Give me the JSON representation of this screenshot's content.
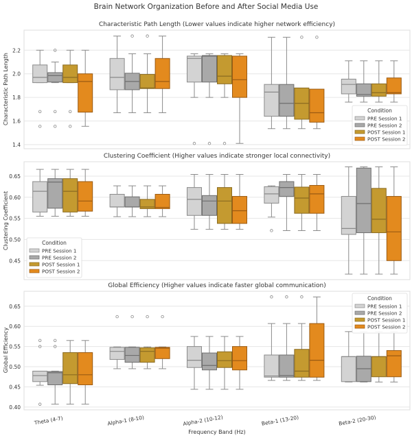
{
  "chart_data": {
    "title": "Brain Network Organization Before and After Social Media Use",
    "xlabel": "Frequency Band (Hz)",
    "categories": [
      "Theta (4-7)",
      "Alpha-1 (8-10)",
      "Alpha-2 (10-12)",
      "Beta-1 (13-20)",
      "Beta-2 (20-30)"
    ],
    "legend": {
      "title": "Condition",
      "entries": [
        {
          "name": "PRE Session 1",
          "color": "#d3d3d3"
        },
        {
          "name": "PRE Session 2",
          "color": "#a9a9a9"
        },
        {
          "name": "POST Session 1",
          "color": "#c49a30"
        },
        {
          "name": "POST Session 2",
          "color": "#e38a1e"
        }
      ]
    },
    "panels": [
      {
        "type": "box",
        "title": "Characteristic Path Length (Lower values indicate higher network efficiency)",
        "ylabel": "Characteristic Path Length",
        "ylim": [
          1.365,
          2.37
        ],
        "yticks": [
          1.4,
          1.6,
          1.8,
          2.0,
          2.2
        ],
        "ytick_labels": [
          "1.4",
          "1.6",
          "1.8",
          "2.0",
          "2.2"
        ],
        "legend_position": "lower-right",
        "grid": true,
        "boxes": [
          [
            {
              "lo": 1.925,
              "q1": 1.925,
              "med": 1.97,
              "q3": 2.075,
              "hi": 2.2,
              "out": [
                1.68,
                1.555
              ]
            },
            {
              "lo": 1.925,
              "q1": 1.93,
              "med": 1.985,
              "q3": 2.01,
              "hi": 2.1,
              "out": [
                2.2,
                1.68,
                1.555
              ]
            },
            {
              "lo": 1.925,
              "q1": 1.925,
              "med": 1.97,
              "q3": 2.075,
              "hi": 2.2,
              "out": [
                1.68,
                1.555
              ]
            },
            {
              "lo": 1.555,
              "q1": 1.675,
              "med": 1.935,
              "q3": 2.0,
              "hi": 2.2,
              "out": []
            }
          ],
          [
            {
              "lo": 1.67,
              "q1": 1.865,
              "med": 1.97,
              "q3": 2.13,
              "hi": 2.32,
              "out": []
            },
            {
              "lo": 1.67,
              "q1": 1.865,
              "med": 1.935,
              "q3": 2.005,
              "hi": 2.17,
              "out": [
                2.32
              ]
            },
            {
              "lo": 1.67,
              "q1": 1.875,
              "med": 1.88,
              "q3": 1.995,
              "hi": 2.17,
              "out": [
                2.32
              ]
            },
            {
              "lo": 1.67,
              "q1": 1.875,
              "med": 1.935,
              "q3": 2.13,
              "hi": 2.32,
              "out": []
            }
          ],
          [
            {
              "lo": 1.8,
              "q1": 1.93,
              "med": 2.13,
              "q3": 2.15,
              "hi": 2.17,
              "out": [
                1.41
              ]
            },
            {
              "lo": 1.8,
              "q1": 1.93,
              "med": 2.15,
              "q3": 2.155,
              "hi": 2.17,
              "out": [
                1.41
              ]
            },
            {
              "lo": 1.8,
              "q1": 1.915,
              "med": 1.98,
              "q3": 2.155,
              "hi": 2.17,
              "out": [
                1.41
              ]
            },
            {
              "lo": 1.41,
              "q1": 1.8,
              "med": 1.95,
              "q3": 2.15,
              "hi": 2.17,
              "out": []
            }
          ],
          [
            {
              "lo": 1.535,
              "q1": 1.64,
              "med": 1.845,
              "q3": 1.91,
              "hi": 2.31,
              "out": []
            },
            {
              "lo": 1.535,
              "q1": 1.64,
              "med": 1.75,
              "q3": 1.91,
              "hi": 2.31,
              "out": []
            },
            {
              "lo": 1.535,
              "q1": 1.615,
              "med": 1.75,
              "q3": 1.88,
              "hi": 1.865,
              "out": [
                2.31
              ]
            },
            {
              "lo": 1.535,
              "q1": 1.59,
              "med": 1.67,
              "q3": 1.87,
              "hi": 1.865,
              "out": [
                2.31
              ]
            }
          ],
          [
            {
              "lo": 1.76,
              "q1": 1.83,
              "med": 1.91,
              "q3": 1.955,
              "hi": 2.11,
              "out": []
            },
            {
              "lo": 1.76,
              "q1": 1.81,
              "med": 1.825,
              "q3": 1.915,
              "hi": 2.11,
              "out": []
            },
            {
              "lo": 1.76,
              "q1": 1.81,
              "med": 1.84,
              "q3": 1.915,
              "hi": 2.11,
              "out": []
            },
            {
              "lo": 1.76,
              "q1": 1.83,
              "med": 1.84,
              "q3": 1.965,
              "hi": 2.11,
              "out": []
            }
          ]
        ]
      },
      {
        "type": "box",
        "title": "Clustering Coefficient (Higher values indicate stronger local connectivity)",
        "ylabel": "Clustering Coefficient",
        "ylim": [
          0.405,
          0.684
        ],
        "yticks": [
          0.45,
          0.5,
          0.55,
          0.6,
          0.65
        ],
        "ytick_labels": [
          "0.45",
          "0.50",
          "0.55",
          "0.60",
          "0.65"
        ],
        "legend_position": "lower-left",
        "grid": true,
        "boxes": [
          [
            {
              "lo": 0.555,
              "q1": 0.565,
              "med": 0.614,
              "q3": 0.637,
              "hi": 0.666,
              "out": []
            },
            {
              "lo": 0.555,
              "q1": 0.574,
              "med": 0.636,
              "q3": 0.644,
              "hi": 0.666,
              "out": []
            },
            {
              "lo": 0.555,
              "q1": 0.565,
              "med": 0.614,
              "q3": 0.644,
              "hi": 0.666,
              "out": []
            },
            {
              "lo": 0.555,
              "q1": 0.567,
              "med": 0.591,
              "q3": 0.637,
              "hi": 0.666,
              "out": []
            }
          ],
          [
            {
              "lo": 0.554,
              "q1": 0.577,
              "med": 0.577,
              "q3": 0.607,
              "hi": 0.627,
              "out": []
            },
            {
              "lo": 0.554,
              "q1": 0.577,
              "med": 0.577,
              "q3": 0.601,
              "hi": 0.627,
              "out": []
            },
            {
              "lo": 0.554,
              "q1": 0.573,
              "med": 0.577,
              "q3": 0.595,
              "hi": 0.627,
              "out": []
            },
            {
              "lo": 0.554,
              "q1": 0.573,
              "med": 0.576,
              "q3": 0.607,
              "hi": 0.627,
              "out": []
            }
          ],
          [
            {
              "lo": 0.524,
              "q1": 0.557,
              "med": 0.595,
              "q3": 0.623,
              "hi": 0.654,
              "out": []
            },
            {
              "lo": 0.524,
              "q1": 0.557,
              "med": 0.591,
              "q3": 0.604,
              "hi": 0.654,
              "out": []
            },
            {
              "lo": 0.524,
              "q1": 0.538,
              "med": 0.591,
              "q3": 0.623,
              "hi": 0.654,
              "out": []
            },
            {
              "lo": 0.524,
              "q1": 0.538,
              "med": 0.568,
              "q3": 0.602,
              "hi": 0.654,
              "out": []
            }
          ],
          [
            {
              "lo": 0.553,
              "q1": 0.586,
              "med": 0.608,
              "q3": 0.625,
              "hi": 0.627,
              "out": [
                0.521
              ]
            },
            {
              "lo": 0.521,
              "q1": 0.602,
              "med": 0.623,
              "q3": 0.637,
              "hi": 0.654,
              "out": []
            },
            {
              "lo": 0.521,
              "q1": 0.562,
              "med": 0.598,
              "q3": 0.624,
              "hi": 0.654,
              "out": []
            },
            {
              "lo": 0.521,
              "q1": 0.562,
              "med": 0.608,
              "q3": 0.628,
              "hi": 0.654,
              "out": []
            }
          ],
          [
            {
              "lo": 0.418,
              "q1": 0.512,
              "med": 0.526,
              "q3": 0.602,
              "hi": 0.672,
              "out": []
            },
            {
              "lo": 0.418,
              "q1": 0.516,
              "med": 0.585,
              "q3": 0.669,
              "hi": 0.672,
              "out": []
            },
            {
              "lo": 0.418,
              "q1": 0.516,
              "med": 0.548,
              "q3": 0.621,
              "hi": 0.672,
              "out": []
            },
            {
              "lo": 0.418,
              "q1": 0.45,
              "med": 0.518,
              "q3": 0.602,
              "hi": 0.672,
              "out": []
            }
          ]
        ]
      },
      {
        "type": "box",
        "title": "Global Efficiency (Higher values indicate faster global communication)",
        "ylabel": "Global Efficiency",
        "ylim": [
          0.393,
          0.687
        ],
        "yticks": [
          0.4,
          0.45,
          0.5,
          0.55,
          0.6,
          0.65
        ],
        "ytick_labels": [
          "0.40",
          "0.45",
          "0.50",
          "0.55",
          "0.60",
          "0.65"
        ],
        "legend_position": "upper-right",
        "grid": true,
        "boxes": [
          [
            {
              "lo": 0.454,
              "q1": 0.463,
              "med": 0.478,
              "q3": 0.489,
              "hi": 0.489,
              "out": [
                0.565,
                0.55,
                0.407
              ]
            },
            {
              "lo": 0.407,
              "q1": 0.455,
              "med": 0.485,
              "q3": 0.488,
              "hi": 0.489,
              "out": [
                0.565,
                0.55
              ]
            },
            {
              "lo": 0.407,
              "q1": 0.458,
              "med": 0.48,
              "q3": 0.535,
              "hi": 0.565,
              "out": []
            },
            {
              "lo": 0.407,
              "q1": 0.455,
              "med": 0.48,
              "q3": 0.535,
              "hi": 0.565,
              "out": []
            }
          ],
          [
            {
              "lo": 0.495,
              "q1": 0.518,
              "med": 0.538,
              "q3": 0.548,
              "hi": 0.549,
              "out": [
                0.624
              ]
            },
            {
              "lo": 0.495,
              "q1": 0.511,
              "med": 0.528,
              "q3": 0.548,
              "hi": 0.549,
              "out": [
                0.624
              ]
            },
            {
              "lo": 0.495,
              "q1": 0.511,
              "med": 0.538,
              "q3": 0.547,
              "hi": 0.549,
              "out": [
                0.624
              ]
            },
            {
              "lo": 0.495,
              "q1": 0.52,
              "med": 0.546,
              "q3": 0.548,
              "hi": 0.549,
              "out": [
                0.624
              ]
            }
          ],
          [
            {
              "lo": 0.444,
              "q1": 0.498,
              "med": 0.516,
              "q3": 0.55,
              "hi": 0.575,
              "out": []
            },
            {
              "lo": 0.444,
              "q1": 0.492,
              "med": 0.503,
              "q3": 0.534,
              "hi": 0.575,
              "out": []
            },
            {
              "lo": 0.444,
              "q1": 0.498,
              "med": 0.515,
              "q3": 0.537,
              "hi": 0.575,
              "out": []
            },
            {
              "lo": 0.444,
              "q1": 0.492,
              "med": 0.515,
              "q3": 0.55,
              "hi": 0.575,
              "out": []
            }
          ],
          [
            {
              "lo": 0.466,
              "q1": 0.474,
              "med": 0.477,
              "q3": 0.529,
              "hi": 0.607,
              "out": [
                0.673
              ]
            },
            {
              "lo": 0.466,
              "q1": 0.474,
              "med": 0.478,
              "q3": 0.529,
              "hi": 0.607,
              "out": [
                0.673
              ]
            },
            {
              "lo": 0.466,
              "q1": 0.474,
              "med": 0.489,
              "q3": 0.543,
              "hi": 0.607,
              "out": [
                0.673
              ]
            },
            {
              "lo": 0.466,
              "q1": 0.474,
              "med": 0.516,
              "q3": 0.607,
              "hi": 0.673,
              "out": []
            }
          ],
          [
            {
              "lo": 0.462,
              "q1": 0.463,
              "med": 0.525,
              "q3": 0.525,
              "hi": 0.587,
              "out": []
            },
            {
              "lo": 0.462,
              "q1": 0.463,
              "med": 0.495,
              "q3": 0.526,
              "hi": 0.587,
              "out": []
            },
            {
              "lo": 0.462,
              "q1": 0.475,
              "med": 0.525,
              "q3": 0.525,
              "hi": 0.587,
              "out": []
            },
            {
              "lo": 0.462,
              "q1": 0.475,
              "med": 0.527,
              "q3": 0.54,
              "hi": 0.587,
              "out": []
            }
          ]
        ]
      }
    ]
  }
}
